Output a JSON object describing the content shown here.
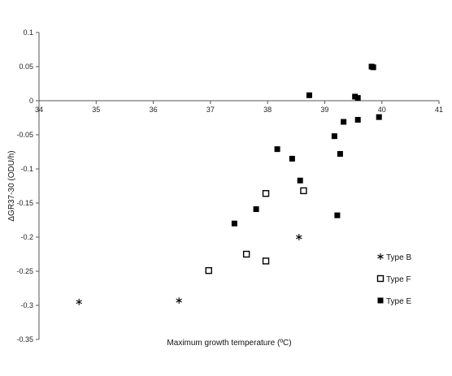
{
  "chart_data": {
    "type": "scatter",
    "xlabel": "Maximum growth temperature (ºC)",
    "ylabel": "ΔGR37-30 (ODU/h)",
    "xlim": [
      34,
      41
    ],
    "ylim": [
      -0.35,
      0.1
    ],
    "x_ticks": [
      34,
      35,
      36,
      37,
      38,
      39,
      40,
      41
    ],
    "y_ticks": [
      0.1,
      0.05,
      0,
      -0.05,
      -0.1,
      -0.15,
      -0.2,
      -0.25,
      -0.3,
      -0.35
    ],
    "x_tick_labels": [
      "34",
      "35",
      "36",
      "37",
      "38",
      "39",
      "40",
      "41"
    ],
    "y_tick_labels": [
      "0.1",
      "0.05",
      "0",
      "-0.05",
      "-0.1",
      "-0.15",
      "-0.2",
      "-0.25",
      "-0.3",
      "-0.35"
    ],
    "grid": false,
    "legend_position": "right",
    "series": [
      {
        "name": "Type B",
        "marker": "asterisk",
        "points": [
          {
            "x": 34.7,
            "y": -0.295
          },
          {
            "x": 36.45,
            "y": -0.293
          },
          {
            "x": 38.55,
            "y": -0.2
          }
        ]
      },
      {
        "name": "Type F",
        "marker": "open-square",
        "points": [
          {
            "x": 36.97,
            "y": -0.249
          },
          {
            "x": 37.63,
            "y": -0.225
          },
          {
            "x": 37.97,
            "y": -0.235
          },
          {
            "x": 37.97,
            "y": -0.136
          },
          {
            "x": 38.63,
            "y": -0.132
          }
        ]
      },
      {
        "name": "Type E",
        "marker": "filled-square",
        "points": [
          {
            "x": 37.42,
            "y": -0.18
          },
          {
            "x": 37.8,
            "y": -0.159
          },
          {
            "x": 38.17,
            "y": -0.071
          },
          {
            "x": 38.43,
            "y": -0.085
          },
          {
            "x": 38.57,
            "y": -0.117
          },
          {
            "x": 38.73,
            "y": 0.008
          },
          {
            "x": 39.17,
            "y": -0.052
          },
          {
            "x": 39.22,
            "y": -0.168
          },
          {
            "x": 39.27,
            "y": -0.078
          },
          {
            "x": 39.33,
            "y": -0.031
          },
          {
            "x": 39.53,
            "y": 0.006
          },
          {
            "x": 39.58,
            "y": 0.004
          },
          {
            "x": 39.58,
            "y": -0.028
          },
          {
            "x": 39.82,
            "y": 0.05
          },
          {
            "x": 39.85,
            "y": 0.049
          },
          {
            "x": 39.95,
            "y": -0.024
          }
        ]
      }
    ]
  }
}
